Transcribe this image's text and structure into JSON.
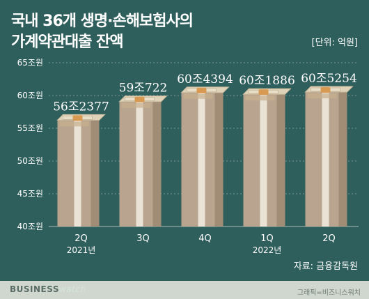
{
  "header": {
    "title_line1": "국내 36개 생명·손해보험사의",
    "title_line2": "가계약관대출 잔액",
    "unit": "[단위: 억원]"
  },
  "source": "자료: 금융감독원",
  "brand": {
    "part1": "BUSINESS",
    "part2": "watch"
  },
  "credit": "그래픽=비즈니스워치",
  "colors": {
    "background": "#2f5f5c",
    "bar_face": "#b9a58f",
    "bar_side": "#a18d76",
    "bar_top": "#ded3b9",
    "band": "#d89a52",
    "text": "#ffffff"
  },
  "chart_data": {
    "type": "bar",
    "categories": [
      "2Q",
      "3Q",
      "4Q",
      "1Q",
      "2Q"
    ],
    "year_labels": [
      "2021년",
      "",
      "",
      "2022년",
      ""
    ],
    "values": [
      562377,
      590722,
      604394,
      601886,
      605254
    ],
    "value_labels": [
      "56조2377",
      "59조722",
      "60조4394",
      "60조1886",
      "60조5254"
    ],
    "y_ticks": [
      400000,
      450000,
      500000,
      550000,
      600000,
      650000
    ],
    "y_tick_labels": [
      "40조원",
      "45조원",
      "50조원",
      "55조원",
      "60조원",
      "65조원"
    ],
    "ylim": [
      400000,
      650000
    ],
    "grid": true
  }
}
